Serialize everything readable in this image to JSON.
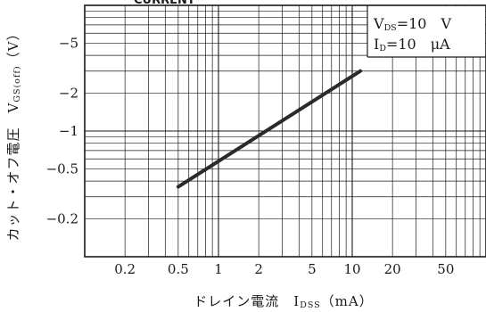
{
  "chart_data": {
    "type": "line",
    "title": "",
    "header_fragment": "CURRENT",
    "xlabel_main": "ドレイン電流　I",
    "xlabel_sub": "DSS",
    "xlabel_unit": "（mA）",
    "ylabel_main": "カット・オフ電圧　V",
    "ylabel_sub": "GS(off)",
    "ylabel_unit": "（V）",
    "x_scale": "log",
    "y_scale": "log",
    "xlim": [
      0.1,
      100
    ],
    "ylim": [
      0.1,
      10
    ],
    "x_ticks": [
      {
        "value": 0.2,
        "label": "0.2"
      },
      {
        "value": 0.5,
        "label": "0.5"
      },
      {
        "value": 1,
        "label": "1"
      },
      {
        "value": 2,
        "label": "2"
      },
      {
        "value": 5,
        "label": "5"
      },
      {
        "value": 10,
        "label": "10"
      },
      {
        "value": 20,
        "label": "20"
      },
      {
        "value": 50,
        "label": "50"
      }
    ],
    "y_ticks": [
      {
        "value": 5,
        "label": "−5"
      },
      {
        "value": 2,
        "label": "−2"
      },
      {
        "value": 1,
        "label": "−1"
      },
      {
        "value": 0.5,
        "label": "−0.5"
      },
      {
        "value": 0.2,
        "label": "−0.2"
      }
    ],
    "grid": true,
    "legend": "none",
    "series": [
      {
        "x": [
          0.5,
          11.5
        ],
        "y": [
          0.36,
          3.0
        ]
      }
    ],
    "conditions": [
      {
        "main": "V",
        "sub": "DS",
        "rest": "=10　V"
      },
      {
        "main": "I",
        "sub": "D",
        "rest": "=10　μA"
      }
    ],
    "colors": {
      "ink": "#1a1a1a",
      "curve": "#2a2a2a",
      "background": "#ffffff"
    }
  }
}
